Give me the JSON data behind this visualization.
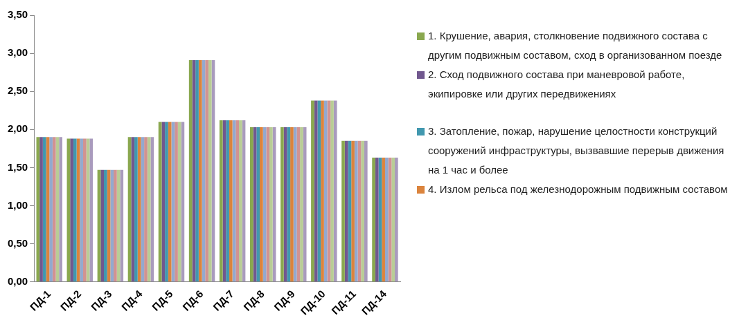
{
  "chart_data": {
    "type": "bar",
    "categories": [
      "ПД-1",
      "ПД-2",
      "ПД-3",
      "ПД-4",
      "ПД-5",
      "ПД-6",
      "ПД-7",
      "ПД-8",
      "ПД-9",
      "ПД-10",
      "ПД-11",
      "ПД-14"
    ],
    "series": [
      {
        "name": "1. Крушение, авария, столкновение подвижного состава с другим подвижным составом, сход в организованном поезде",
        "color": "#8aa84f",
        "values": [
          1.9,
          1.88,
          1.47,
          1.9,
          2.1,
          2.91,
          2.12,
          2.03,
          2.03,
          2.38,
          1.85,
          1.63
        ]
      },
      {
        "name": "2. Сход подвижного состава при маневровой работе, экипировке или других передвижениях",
        "color": "#71588f",
        "values": [
          1.9,
          1.88,
          1.47,
          1.9,
          2.1,
          2.91,
          2.12,
          2.03,
          2.03,
          2.38,
          1.85,
          1.63
        ]
      },
      {
        "name": "3. Затопление, пожар, нарушение целостности конструкций сооружений инфраструктуры, вызвавшие перерыв движения на 1 час и более",
        "color": "#4198af",
        "values": [
          1.9,
          1.88,
          1.47,
          1.9,
          2.1,
          2.91,
          2.12,
          2.03,
          2.03,
          2.38,
          1.85,
          1.63
        ]
      },
      {
        "name": "4. Излом рельса под железнодорожным подвижным составом",
        "color": "#db843d",
        "values": [
          1.9,
          1.88,
          1.47,
          1.9,
          2.1,
          2.91,
          2.12,
          2.03,
          2.03,
          2.38,
          1.85,
          1.63
        ]
      },
      {
        "color": "#93a9cf",
        "values": [
          1.9,
          1.88,
          1.47,
          1.9,
          2.1,
          2.91,
          2.12,
          2.03,
          2.03,
          2.38,
          1.85,
          1.63
        ]
      },
      {
        "color": "#d19392",
        "values": [
          1.9,
          1.88,
          1.47,
          1.9,
          2.1,
          2.91,
          2.12,
          2.03,
          2.03,
          2.38,
          1.85,
          1.63
        ]
      },
      {
        "color": "#b9cd96",
        "values": [
          1.9,
          1.88,
          1.47,
          1.9,
          2.1,
          2.91,
          2.12,
          2.03,
          2.03,
          2.38,
          1.85,
          1.63
        ]
      },
      {
        "color": "#a99bbd",
        "values": [
          1.9,
          1.88,
          1.47,
          1.9,
          2.1,
          2.91,
          2.12,
          2.03,
          2.03,
          2.38,
          1.85,
          1.63
        ]
      }
    ],
    "ylim": [
      0,
      3.5
    ],
    "yticks": [
      {
        "value": 0,
        "label": "0,00"
      },
      {
        "value": 0.5,
        "label": "0,50"
      },
      {
        "value": 1,
        "label": "1,00"
      },
      {
        "value": 1.5,
        "label": "1,50"
      },
      {
        "value": 2,
        "label": "2,00"
      },
      {
        "value": 2.5,
        "label": "2,50"
      },
      {
        "value": 3,
        "label": "3,00"
      },
      {
        "value": 3.5,
        "label": "3,50"
      }
    ],
    "grid": false,
    "legend": "right"
  }
}
